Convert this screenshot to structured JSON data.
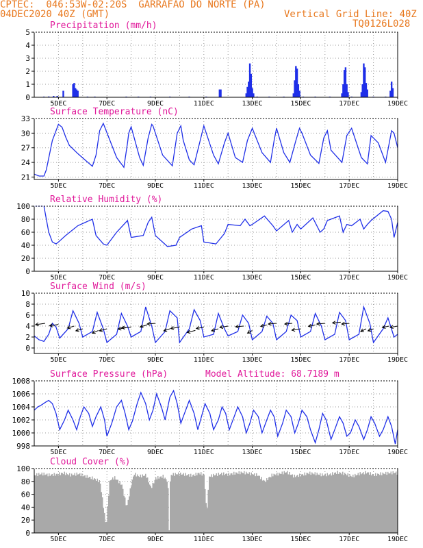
{
  "header": {
    "line1": "CPTEC:  046:53W-02:20S  GARRAFAO DO NORTE (PA)",
    "line2": "04DEC2020 40Z (GMT)",
    "right1": "Vertical Grid Line: 40Z",
    "right2": "TQ0126L028"
  },
  "colors": {
    "header": "#e8781e",
    "title": "#e0189a",
    "line": "#1f2fe8",
    "bar": "#1f2fe8",
    "cloud": "#a9a9a9",
    "arrow": "#000000"
  },
  "chart_data": [
    {
      "type": "bar",
      "title": "Precipitation (mm/h)",
      "ylim": [
        0,
        5
      ],
      "yticks": [
        0,
        1,
        2,
        3,
        4,
        5
      ],
      "xlim": [
        4.0,
        19.0
      ],
      "xticks": [
        "5DEC",
        "7DEC",
        "9DEC",
        "11DEC",
        "13DEC",
        "15DEC",
        "17DEC",
        "19DEC"
      ],
      "xtick_positions": [
        5,
        7,
        9,
        11,
        13,
        15,
        17,
        19
      ],
      "bars": [
        [
          4.4,
          0.05
        ],
        [
          4.6,
          0.06
        ],
        [
          4.8,
          0.1
        ],
        [
          4.95,
          0.1
        ],
        [
          5.2,
          0.5
        ],
        [
          5.6,
          1.0
        ],
        [
          5.65,
          1.1
        ],
        [
          5.7,
          0.7
        ],
        [
          5.75,
          0.6
        ],
        [
          5.8,
          0.5
        ],
        [
          6.2,
          0.05
        ],
        [
          6.5,
          0.05
        ],
        [
          7.8,
          0.05
        ],
        [
          8.3,
          0.05
        ],
        [
          8.8,
          0.05
        ],
        [
          9.6,
          0.05
        ],
        [
          10.4,
          0.05
        ],
        [
          11.1,
          0.05
        ],
        [
          11.65,
          0.6
        ],
        [
          11.7,
          0.6
        ],
        [
          12.75,
          0.3
        ],
        [
          12.8,
          0.8
        ],
        [
          12.85,
          1.2
        ],
        [
          12.9,
          2.6
        ],
        [
          12.95,
          1.8
        ],
        [
          13.0,
          0.7
        ],
        [
          13.05,
          0.3
        ],
        [
          13.2,
          0.05
        ],
        [
          13.7,
          0.05
        ],
        [
          14.3,
          0.05
        ],
        [
          14.7,
          0.3
        ],
        [
          14.75,
          1.3
        ],
        [
          14.8,
          2.4
        ],
        [
          14.85,
          2.2
        ],
        [
          14.9,
          1.0
        ],
        [
          14.95,
          0.5
        ],
        [
          15.1,
          0.05
        ],
        [
          15.6,
          0.05
        ],
        [
          16.2,
          0.05
        ],
        [
          16.7,
          0.3
        ],
        [
          16.75,
          1.0
        ],
        [
          16.8,
          2.1
        ],
        [
          16.85,
          2.3
        ],
        [
          16.9,
          1.0
        ],
        [
          16.95,
          0.4
        ],
        [
          17.1,
          0.05
        ],
        [
          17.5,
          0.4
        ],
        [
          17.55,
          1.0
        ],
        [
          17.6,
          2.6
        ],
        [
          17.65,
          2.3
        ],
        [
          17.7,
          1.1
        ],
        [
          17.75,
          0.6
        ],
        [
          18.0,
          0.05
        ],
        [
          18.5,
          0.05
        ],
        [
          18.7,
          0.5
        ],
        [
          18.75,
          1.2
        ],
        [
          18.8,
          0.7
        ]
      ]
    },
    {
      "type": "line",
      "title": "Surface Temperature (nC)",
      "ylim": [
        20.5,
        33
      ],
      "yticks": [
        21,
        24,
        27,
        30,
        33
      ],
      "xticks": [
        "5DEC",
        "7DEC",
        "9DEC",
        "11DEC",
        "13DEC",
        "15DEC",
        "17DEC",
        "19DEC"
      ],
      "x": [
        4.0,
        4.2,
        4.4,
        4.5,
        4.75,
        5.0,
        5.15,
        5.3,
        5.45,
        5.8,
        6.4,
        6.55,
        6.7,
        6.85,
        7.4,
        7.7,
        7.85,
        7.9,
        8.0,
        8.35,
        8.5,
        8.7,
        8.85,
        8.9,
        9.3,
        9.7,
        9.9,
        10.05,
        10.15,
        10.4,
        10.6,
        10.9,
        11.0,
        11.4,
        11.6,
        11.85,
        12.0,
        12.3,
        12.6,
        12.8,
        13.0,
        13.4,
        13.75,
        13.9,
        14.0,
        14.3,
        14.55,
        14.8,
        14.95,
        15.05,
        15.4,
        15.75,
        15.95,
        16.1,
        16.25,
        16.7,
        16.9,
        17.1,
        17.5,
        17.75,
        17.9,
        18.2,
        18.5,
        18.75,
        18.85,
        19.0
      ],
      "y": [
        21.6,
        21.2,
        21.2,
        22.5,
        28.5,
        31.8,
        31.2,
        29.2,
        27.5,
        25.8,
        23.2,
        25.5,
        30.5,
        32.0,
        25.0,
        23.0,
        28.0,
        30.0,
        31.3,
        25.0,
        23.4,
        29.0,
        31.8,
        31.5,
        25.5,
        23.3,
        30.0,
        31.5,
        28.5,
        24.5,
        23.5,
        29.5,
        31.5,
        25.5,
        23.7,
        28.0,
        30.0,
        25.0,
        24.0,
        28.5,
        31.0,
        26.0,
        24.0,
        28.5,
        31.0,
        26.0,
        24.0,
        28.5,
        31.0,
        30.0,
        25.5,
        23.8,
        29.0,
        30.5,
        26.5,
        24.0,
        29.5,
        31.0,
        25.0,
        23.7,
        29.5,
        28.0,
        24.0,
        30.5,
        30.0,
        27.0
      ]
    },
    {
      "type": "line",
      "title": "Relative Humidity (%)",
      "ylim": [
        0,
        100
      ],
      "yticks": [
        0,
        20,
        40,
        60,
        80,
        100
      ],
      "xticks": [
        "5DEC",
        "7DEC",
        "9DEC",
        "11DEC",
        "13DEC",
        "15DEC",
        "17DEC",
        "19DEC"
      ],
      "x": [
        4.0,
        4.4,
        4.6,
        4.75,
        4.9,
        5.0,
        5.3,
        5.8,
        6.4,
        6.55,
        6.85,
        7.0,
        7.4,
        7.85,
        8.0,
        8.5,
        8.7,
        8.85,
        9.0,
        9.5,
        9.85,
        10.0,
        10.5,
        10.9,
        11.0,
        11.5,
        11.85,
        12.0,
        12.5,
        12.7,
        12.9,
        13.0,
        13.5,
        13.85,
        14.0,
        14.5,
        14.65,
        14.85,
        15.0,
        15.5,
        15.8,
        15.95,
        16.1,
        16.6,
        16.75,
        16.9,
        17.1,
        17.45,
        17.6,
        17.75,
        17.9,
        18.4,
        18.6,
        18.75,
        18.85,
        19.0
      ],
      "y": [
        100,
        100,
        60,
        45,
        42,
        45,
        55,
        70,
        80,
        55,
        42,
        40,
        60,
        78,
        52,
        55,
        75,
        83,
        55,
        38,
        40,
        52,
        65,
        70,
        45,
        42,
        58,
        72,
        70,
        80,
        70,
        72,
        85,
        70,
        62,
        78,
        60,
        72,
        65,
        82,
        60,
        65,
        78,
        85,
        60,
        72,
        70,
        80,
        65,
        72,
        78,
        93,
        92,
        80,
        52,
        75
      ]
    },
    {
      "type": "line",
      "title": "Surface Wind (m/s)",
      "ylim": [
        -1,
        10
      ],
      "yticks": [
        0,
        2,
        4,
        6,
        8,
        10
      ],
      "xticks": [
        "5DEC",
        "7DEC",
        "9DEC",
        "11DEC",
        "13DEC",
        "15DEC",
        "17DEC",
        "19DEC"
      ],
      "x": [
        4.0,
        4.2,
        4.4,
        4.6,
        4.75,
        4.9,
        5.05,
        5.4,
        5.6,
        5.85,
        6.0,
        6.4,
        6.6,
        6.85,
        7.0,
        7.4,
        7.6,
        7.85,
        8.0,
        8.4,
        8.6,
        8.85,
        9.0,
        9.4,
        9.6,
        9.9,
        10.0,
        10.4,
        10.6,
        10.85,
        11.0,
        11.4,
        11.6,
        11.85,
        12.0,
        12.4,
        12.6,
        12.85,
        13.0,
        13.4,
        13.6,
        13.85,
        14.0,
        14.4,
        14.6,
        14.85,
        15.0,
        15.4,
        15.6,
        15.85,
        16.0,
        16.4,
        16.6,
        16.85,
        17.0,
        17.4,
        17.6,
        17.85,
        18.0,
        18.4,
        18.6,
        18.85,
        19.0
      ],
      "y": [
        2.2,
        1.5,
        1.2,
        2.5,
        4.5,
        3.8,
        1.8,
        3.5,
        6.8,
        4.5,
        2.0,
        3.0,
        6.5,
        3.5,
        1.0,
        2.5,
        6.3,
        4.0,
        2.0,
        3.0,
        7.5,
        4.0,
        1.0,
        3.0,
        6.8,
        5.5,
        1.0,
        3.5,
        7.0,
        5.0,
        2.0,
        2.5,
        6.3,
        3.5,
        2.2,
        3.0,
        6.0,
        4.5,
        1.5,
        3.0,
        5.8,
        4.5,
        1.5,
        3.0,
        6.0,
        5.0,
        2.0,
        3.0,
        6.3,
        4.0,
        1.5,
        2.5,
        6.5,
        5.0,
        1.5,
        2.5,
        7.5,
        4.5,
        1.0,
        3.5,
        5.5,
        2.0,
        2.5
      ],
      "arrow_x": [
        4.45,
        5.0,
        5.65,
        6.0,
        6.65,
        7.0,
        7.8,
        8.0,
        8.65,
        9.0,
        9.6,
        10.0,
        10.65,
        11.0,
        11.6,
        12.0,
        12.65,
        13.0,
        13.6,
        14.0,
        14.65,
        15.0,
        15.6,
        16.0,
        16.65,
        17.0,
        17.7,
        18.0,
        18.65,
        19.0
      ],
      "arrow_y": [
        4.5,
        4.3,
        4.0,
        3.5,
        3.2,
        3.5,
        3.7,
        3.8,
        4.2,
        4.5,
        3.5,
        3.8,
        3.2,
        3.8,
        3.5,
        4.0,
        4.0,
        3.2,
        4.2,
        4.5,
        4.5,
        3.5,
        4.2,
        4.5,
        4.7,
        4.5,
        3.5,
        3.5,
        4.0,
        4.0
      ],
      "arrow_dx": [
        -14,
        -13,
        -10,
        -10,
        -9,
        -11,
        -12,
        -14,
        -10,
        -12,
        -9,
        -13,
        -12,
        -11,
        -10,
        -12,
        -12,
        -7,
        -9,
        -12,
        -11,
        -13,
        -10,
        -12,
        -12,
        -11,
        -8,
        -8,
        -10,
        -11
      ],
      "arrow_dy": [
        2,
        2,
        3,
        3,
        4,
        3,
        2,
        1,
        3,
        1,
        3,
        2,
        3,
        2,
        3,
        2,
        1,
        4,
        2,
        1,
        1,
        2,
        2,
        1,
        1,
        1,
        4,
        3,
        2,
        2
      ]
    },
    {
      "type": "line",
      "title": "Surface Pressure (hPa)",
      "subtitle": "Model Altitude: 68.7189 m",
      "ylim": [
        998,
        1008
      ],
      "yticks": [
        998,
        1000,
        1002,
        1004,
        1006,
        1008
      ],
      "xticks": [
        "5DEC",
        "7DEC",
        "9DEC",
        "11DEC",
        "13DEC",
        "15DEC",
        "17DEC",
        "19DEC"
      ],
      "x": [
        4.0,
        4.15,
        4.3,
        4.5,
        4.6,
        4.75,
        4.9,
        5.05,
        5.25,
        5.4,
        5.6,
        5.75,
        5.9,
        6.05,
        6.25,
        6.4,
        6.55,
        6.75,
        6.9,
        7.0,
        7.2,
        7.4,
        7.6,
        7.75,
        7.9,
        8.05,
        8.25,
        8.4,
        8.6,
        8.75,
        8.9,
        9.05,
        9.25,
        9.4,
        9.6,
        9.75,
        9.9,
        10.05,
        10.25,
        10.4,
        10.6,
        10.75,
        10.9,
        11.05,
        11.25,
        11.4,
        11.6,
        11.75,
        11.9,
        12.05,
        12.25,
        12.4,
        12.6,
        12.75,
        12.9,
        13.05,
        13.25,
        13.4,
        13.6,
        13.75,
        13.9,
        14.05,
        14.25,
        14.4,
        14.6,
        14.75,
        14.9,
        15.05,
        15.25,
        15.4,
        15.6,
        15.75,
        15.9,
        16.05,
        16.25,
        16.4,
        16.6,
        16.75,
        16.9,
        17.05,
        17.25,
        17.4,
        17.6,
        17.75,
        17.9,
        18.05,
        18.25,
        18.4,
        18.6,
        18.75,
        18.9,
        19.0
      ],
      "y": [
        1003.5,
        1004.0,
        1004.3,
        1004.8,
        1005.0,
        1004.5,
        1003.0,
        1000.5,
        1002.0,
        1003.5,
        1002.0,
        1000.5,
        1002.5,
        1004.0,
        1003.0,
        1001.0,
        1002.5,
        1004.0,
        1002.0,
        999.5,
        1001.5,
        1004.0,
        1005.0,
        1003.0,
        1000.5,
        1001.8,
        1004.5,
        1006.2,
        1004.5,
        1002.0,
        1003.5,
        1006.0,
        1004.0,
        1002.0,
        1005.5,
        1006.5,
        1004.5,
        1001.5,
        1003.5,
        1005.0,
        1003.0,
        1000.5,
        1002.5,
        1004.5,
        1003.0,
        1000.5,
        1002.0,
        1004.0,
        1003.0,
        1000.5,
        1002.5,
        1004.0,
        1002.5,
        1000.0,
        1001.5,
        1003.5,
        1002.5,
        1000.0,
        1002.0,
        1003.5,
        1002.5,
        999.5,
        1001.5,
        1003.5,
        1002.5,
        1000.0,
        1001.5,
        1003.5,
        1002.5,
        1000.5,
        998.5,
        1000.5,
        1003.0,
        1002.0,
        999.0,
        1000.5,
        1002.5,
        1001.5,
        999.5,
        1000.0,
        1002.0,
        1001.0,
        999.0,
        1000.5,
        1002.5,
        1001.5,
        999.5,
        1000.5,
        1002.5,
        1001.0,
        998.3,
        1000.5
      ]
    },
    {
      "type": "area",
      "title": "Cloud Cover (%)",
      "ylim": [
        0,
        100
      ],
      "yticks": [
        0,
        20,
        40,
        60,
        80,
        100
      ],
      "xticks": [
        "5DEC",
        "7DEC",
        "9DEC",
        "11DEC",
        "13DEC",
        "15DEC",
        "17DEC",
        "19DEC"
      ],
      "x": [
        4.0,
        4.3,
        4.6,
        4.9,
        5.2,
        5.5,
        5.8,
        6.1,
        6.4,
        6.7,
        6.95,
        7.05,
        7.1,
        7.3,
        7.6,
        7.8,
        8.0,
        8.1,
        8.3,
        8.6,
        8.8,
        9.0,
        9.3,
        9.5,
        9.55,
        9.6,
        9.9,
        10.2,
        10.5,
        10.8,
        11.0,
        11.1,
        11.2,
        11.4,
        11.7,
        12.0,
        12.3,
        12.6,
        12.9,
        13.2,
        13.5,
        13.8,
        14.1,
        14.4,
        14.7,
        15.0,
        15.3,
        15.6,
        15.9,
        16.2,
        16.5,
        16.8,
        17.1,
        17.4,
        17.7,
        18.0,
        18.3,
        18.6,
        18.9,
        19.0
      ],
      "y": [
        90,
        92,
        90,
        91,
        93,
        90,
        92,
        88,
        85,
        80,
        10,
        60,
        82,
        86,
        75,
        40,
        78,
        92,
        88,
        90,
        70,
        85,
        88,
        80,
        5,
        90,
        92,
        91,
        89,
        93,
        90,
        30,
        88,
        90,
        92,
        91,
        93,
        94,
        92,
        90,
        80,
        90,
        92,
        95,
        88,
        90,
        93,
        92,
        90,
        91,
        94,
        92,
        88,
        92,
        94,
        90,
        92,
        93,
        94,
        92
      ]
    }
  ]
}
